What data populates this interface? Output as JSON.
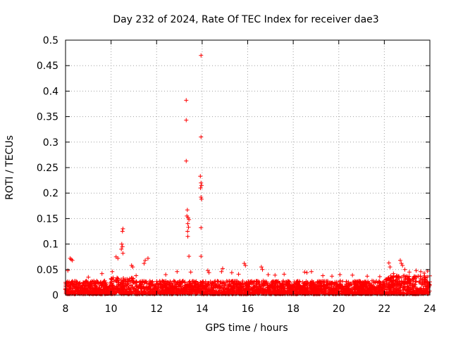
{
  "chart_data": {
    "type": "scatter",
    "title": "Day 232 of 2024, Rate Of TEC Index for receiver dae3",
    "xlabel": "GPS time / hours",
    "ylabel": "ROTI / TECUs",
    "xlim": [
      8,
      24
    ],
    "ylim": [
      0,
      0.5
    ],
    "xticks": [
      8,
      10,
      12,
      14,
      16,
      18,
      20,
      22,
      24
    ],
    "yticks": [
      0,
      0.05,
      0.1,
      0.15,
      0.2,
      0.25,
      0.3,
      0.35,
      0.4,
      0.45,
      0.5
    ],
    "xtick_labels": [
      "8",
      "10",
      "12",
      "14",
      "16",
      "18",
      "20",
      "22",
      "24"
    ],
    "ytick_labels": [
      "0",
      "0.05",
      "0.1",
      "0.15",
      "0.2",
      "0.25",
      "0.3",
      "0.35",
      "0.4",
      "0.45",
      "0.5"
    ],
    "grid": true,
    "marker": "+",
    "series": [
      {
        "name": "ROTI",
        "color": "#ff0000",
        "points": [
          [
            13.95,
            0.47
          ],
          [
            13.3,
            0.382
          ],
          [
            13.3,
            0.343
          ],
          [
            13.95,
            0.31
          ],
          [
            13.3,
            0.263
          ],
          [
            13.92,
            0.233
          ],
          [
            13.95,
            0.22
          ],
          [
            13.97,
            0.215
          ],
          [
            13.93,
            0.21
          ],
          [
            13.95,
            0.192
          ],
          [
            13.97,
            0.188
          ],
          [
            13.35,
            0.167
          ],
          [
            13.33,
            0.155
          ],
          [
            13.38,
            0.152
          ],
          [
            13.42,
            0.148
          ],
          [
            13.37,
            0.14
          ],
          [
            13.4,
            0.133
          ],
          [
            13.95,
            0.132
          ],
          [
            13.36,
            0.125
          ],
          [
            13.37,
            0.115
          ],
          [
            10.52,
            0.13
          ],
          [
            10.5,
            0.125
          ],
          [
            10.47,
            0.1
          ],
          [
            10.5,
            0.095
          ],
          [
            10.45,
            0.09
          ],
          [
            10.52,
            0.082
          ],
          [
            13.42,
            0.076
          ],
          [
            13.95,
            0.076
          ],
          [
            8.2,
            0.072
          ],
          [
            8.25,
            0.07
          ],
          [
            8.3,
            0.068
          ],
          [
            10.22,
            0.075
          ],
          [
            10.3,
            0.072
          ],
          [
            11.62,
            0.072
          ],
          [
            11.5,
            0.068
          ],
          [
            11.45,
            0.062
          ],
          [
            15.85,
            0.062
          ],
          [
            15.9,
            0.058
          ],
          [
            16.6,
            0.055
          ],
          [
            16.65,
            0.05
          ],
          [
            22.2,
            0.063
          ],
          [
            22.25,
            0.055
          ],
          [
            22.7,
            0.068
          ],
          [
            22.75,
            0.062
          ],
          [
            22.8,
            0.058
          ],
          [
            14.9,
            0.052
          ],
          [
            14.85,
            0.046
          ],
          [
            10.9,
            0.058
          ],
          [
            10.95,
            0.055
          ],
          [
            18.5,
            0.045
          ],
          [
            18.6,
            0.044
          ],
          [
            18.8,
            0.046
          ],
          [
            20.05,
            0.04
          ],
          [
            21.25,
            0.037
          ],
          [
            13.5,
            0.045
          ],
          [
            14.25,
            0.048
          ],
          [
            14.3,
            0.044
          ],
          [
            8.1,
            0.048
          ],
          [
            9.6,
            0.042
          ],
          [
            10.05,
            0.046
          ],
          [
            15.3,
            0.044
          ],
          [
            16.9,
            0.04
          ],
          [
            17.6,
            0.041
          ],
          [
            19.3,
            0.038
          ],
          [
            20.6,
            0.039
          ],
          [
            21.8,
            0.036
          ],
          [
            23.1,
            0.045
          ],
          [
            23.4,
            0.048
          ],
          [
            23.6,
            0.046
          ],
          [
            23.75,
            0.043
          ],
          [
            23.9,
            0.047
          ],
          [
            12.4,
            0.04
          ],
          [
            12.9,
            0.046
          ],
          [
            9.0,
            0.035
          ],
          [
            11.1,
            0.038
          ],
          [
            15.6,
            0.041
          ],
          [
            17.2,
            0.039
          ],
          [
            19.7,
            0.037
          ],
          [
            22.4,
            0.042
          ],
          [
            22.9,
            0.05
          ]
        ]
      }
    ]
  }
}
